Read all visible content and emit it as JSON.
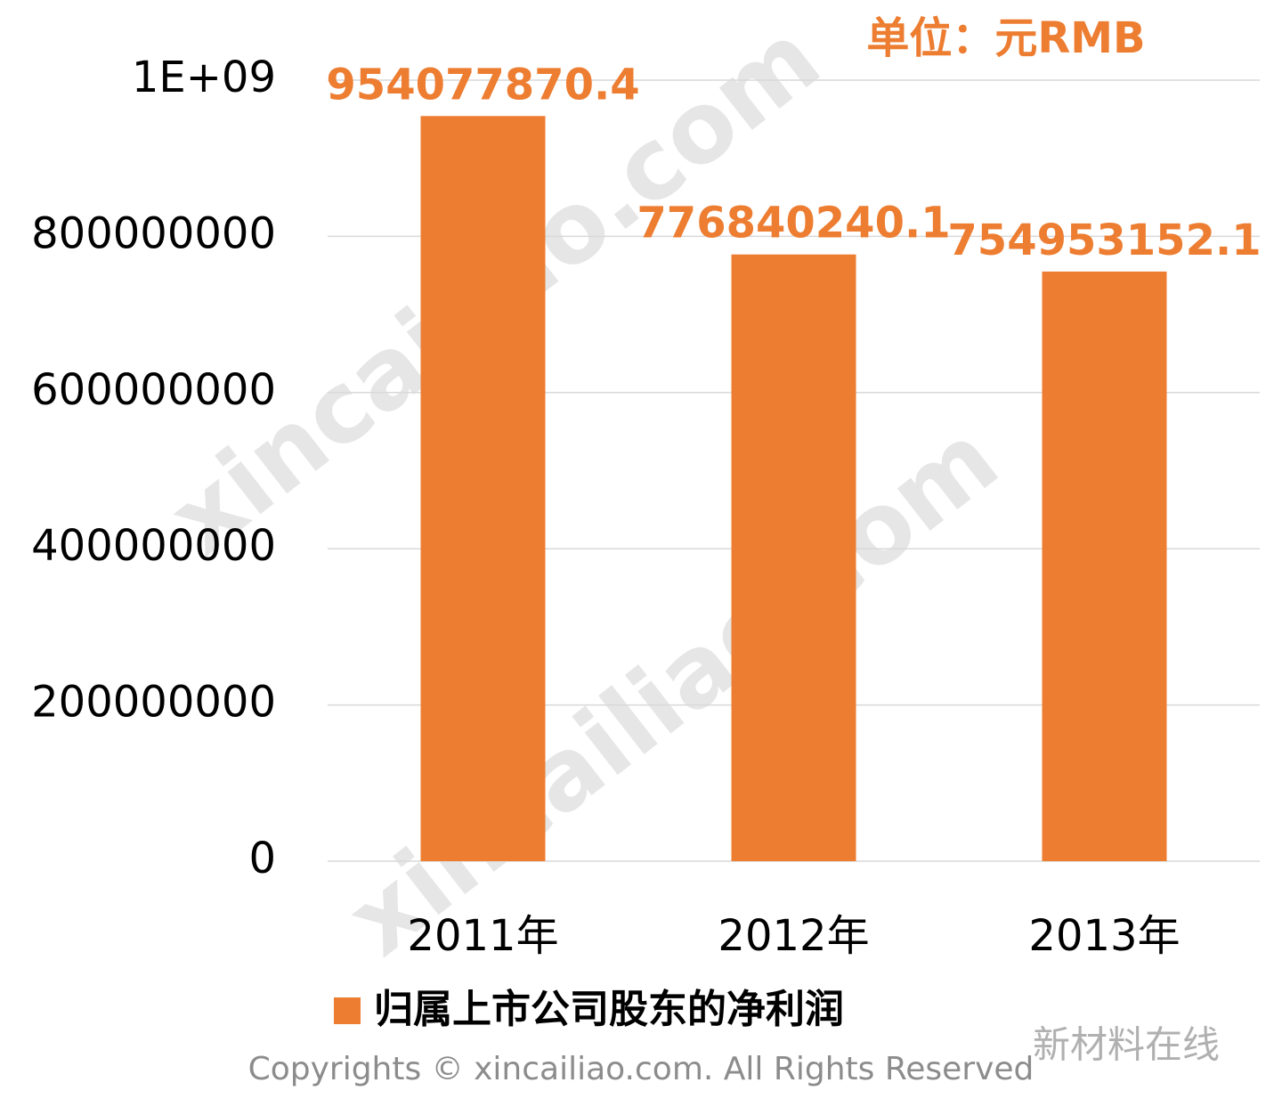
{
  "chart_data": {
    "type": "bar",
    "annotation": "单位：元RMB",
    "categories": [
      "2011年",
      "2012年",
      "2013年"
    ],
    "series": [
      {
        "name": "归属上市公司股东的净利润",
        "color": "#ed7d31",
        "values": [
          954077870.4,
          776840240.1,
          754953152.1
        ]
      }
    ],
    "ylim": [
      0,
      1000000000
    ],
    "yticks": [
      0,
      200000000,
      400000000,
      600000000,
      800000000,
      {
        "value": 1000000000,
        "label": "1E+09"
      }
    ],
    "grid": true,
    "legend": "bottom",
    "watermarks": [
      "xincailiao.com",
      "xincailiao.com"
    ],
    "footer": "Copyrights © xincailiao.com. All Rights Reserved",
    "logo": "新材料在线"
  }
}
